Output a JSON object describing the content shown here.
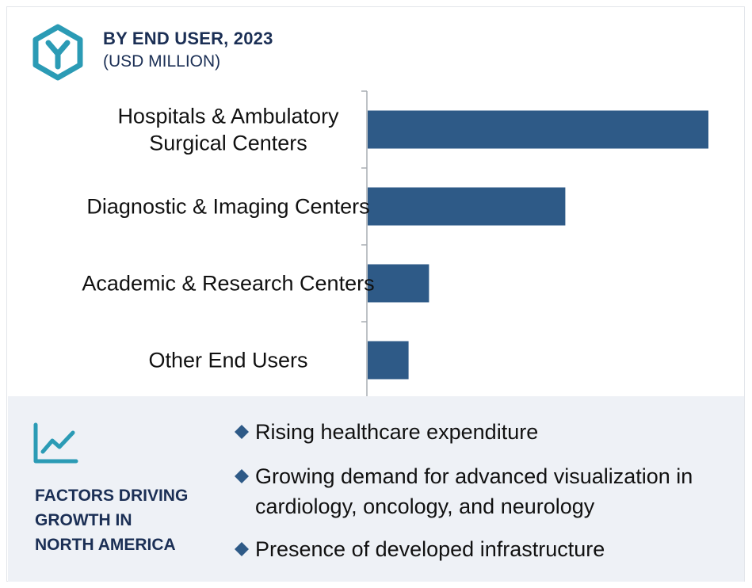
{
  "header": {
    "icon": "hexagon-y-icon",
    "title": "BY END USER, 2023",
    "subtitle": "(USD MILLION)"
  },
  "chart_data": {
    "type": "bar",
    "orientation": "horizontal",
    "title": "BY END USER, 2023",
    "subtitle": "(USD MILLION)",
    "categories": [
      [
        "Hospitals & Ambulatory",
        "Surgical Centers"
      ],
      [
        "Diagnostic & Imaging Centers"
      ],
      [
        "Academic & Research Centers"
      ],
      [
        "Other End Users"
      ]
    ],
    "values": [
      100,
      58,
      18,
      12
    ],
    "value_scale": "relative (no axis values printed)",
    "xlim": [
      0,
      100
    ],
    "grid": false,
    "legend": "none",
    "bar_color": "#2e5a87"
  },
  "panel": {
    "icon": "trend-line-chart-icon",
    "title_lines": [
      "FACTORS DRIVING",
      "GROWTH IN",
      "NORTH AMERICA"
    ],
    "bullet_icon": "diamond-icon",
    "factors": [
      [
        "Rising healthcare expenditure"
      ],
      [
        "Growing demand for advanced visualization in",
        "cardiology, oncology, and neurology"
      ],
      [
        "Presence of developed infrastructure"
      ]
    ]
  },
  "colors": {
    "accent": "#2b9bb5",
    "bar": "#2e5a87",
    "heading": "#1b2f55",
    "panel_bg": "#eef1f6"
  }
}
